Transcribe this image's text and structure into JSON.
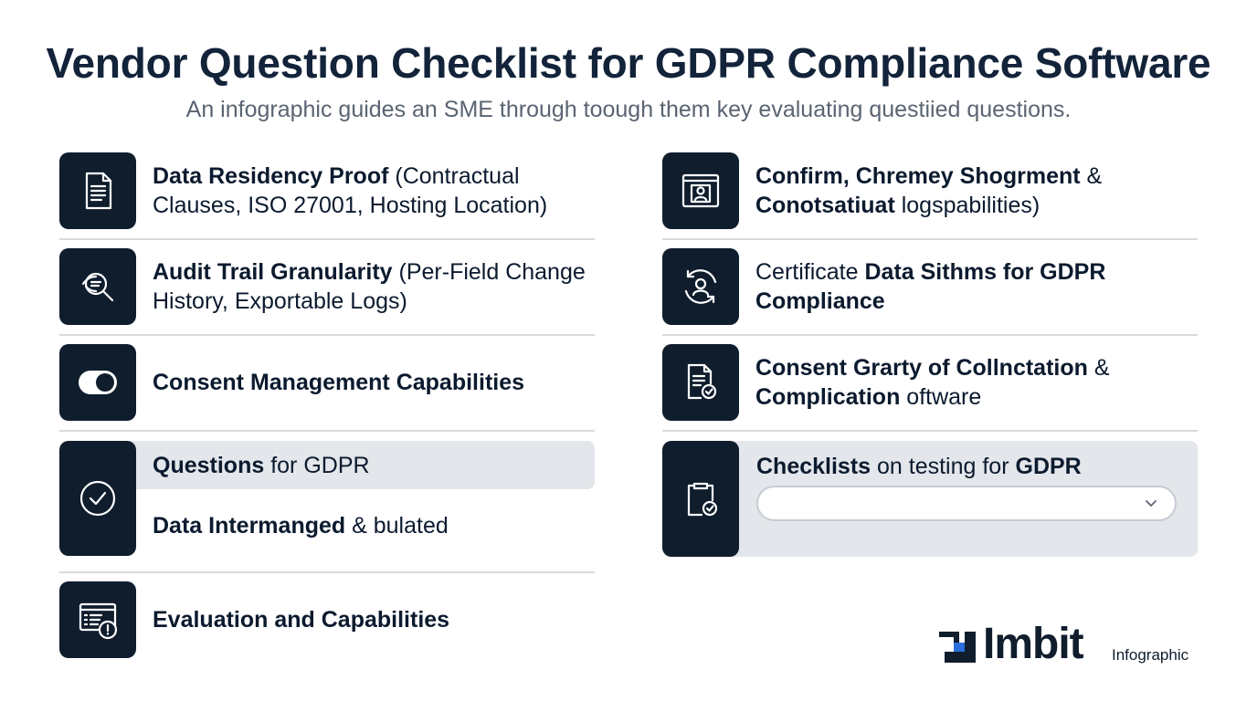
{
  "header": {
    "title": "Vendor Question Checklist for GDPR Compliance Software",
    "subtitle": "An infographic guides an SME through toough them key evaluating questiied questions."
  },
  "left_items": [
    {
      "icon": "document-icon",
      "bold": "Data Residency Proof",
      "rest": " (Contractual Clauses, ISO 27001, Hosting Location)"
    },
    {
      "icon": "magnifier-eye-icon",
      "bold": "Audit Trail Granularity",
      "rest": " (Per-Field Change History,  Exportable Logs)"
    },
    {
      "icon": "toggle-icon",
      "bold": "Consent Management Capabilities",
      "rest": ""
    },
    {
      "icon": "check-circle-icon",
      "row1_bold": "Questions",
      "row1_rest": " for GDPR",
      "row2_bold": "Data Intermanged",
      "row2_rest": " & bulated"
    },
    {
      "icon": "window-alert-icon",
      "bold": "Evaluation and Capabilities",
      "rest": ""
    }
  ],
  "right_items": [
    {
      "icon": "browser-user-icon",
      "bold": "Confirm, Chremey Shogrment",
      "rest": " & ",
      "line2_bold": "Conotsatiuat",
      "line2_rest": " logspabilities)"
    },
    {
      "icon": "user-sync-icon",
      "pre": "Certificate ",
      "bold": "Data Sithms for GDPR Compliance",
      "rest": ""
    },
    {
      "icon": "document-check-icon",
      "bold": "Consent Grarty of Collnctation",
      "rest": " & ",
      "line2_bold": "Complication",
      "line2_rest": " oftware"
    },
    {
      "icon": "clipboard-check-icon",
      "bold": "Checklists",
      "rest": " on testing for ",
      "bold2": "GDPR",
      "select_value": ""
    }
  ],
  "brand": {
    "name": "Imbit",
    "tag": "Infographic"
  },
  "colors": {
    "tile": "#0f1d2d",
    "divider": "#d7dbe0",
    "highlight": "#e3e6ea"
  }
}
